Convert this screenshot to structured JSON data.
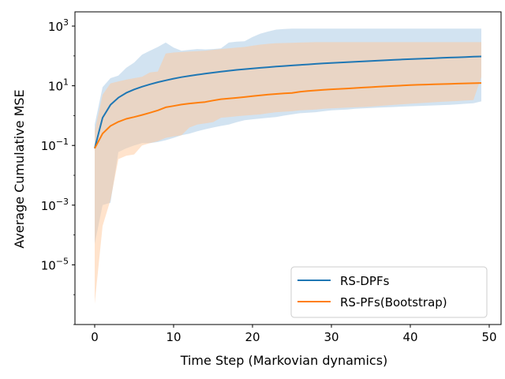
{
  "chart_data": {
    "type": "line",
    "title": "",
    "xlabel": "Time Step (Markovian dynamics)",
    "ylabel": "Average Cumulative MSE",
    "xlim": [
      -2.5,
      51.5
    ],
    "ylim": [
      1e-07,
      3000
    ],
    "yscale": "log",
    "grid": false,
    "legend_position": "lower-right",
    "xticks": [
      {
        "value": 0,
        "label": "0"
      },
      {
        "value": 10,
        "label": "10"
      },
      {
        "value": 20,
        "label": "20"
      },
      {
        "value": 30,
        "label": "30"
      },
      {
        "value": 40,
        "label": "40"
      },
      {
        "value": 50,
        "label": "50"
      }
    ],
    "yticks": [
      {
        "value": 1e-05,
        "base": "10",
        "exp": "−5"
      },
      {
        "value": 0.001,
        "base": "10",
        "exp": "−3"
      },
      {
        "value": 0.1,
        "base": "10",
        "exp": "−1"
      },
      {
        "value": 10,
        "base": "10",
        "exp": "1"
      },
      {
        "value": 1000,
        "base": "10",
        "exp": "3"
      }
    ],
    "x": [
      0,
      1,
      2,
      3,
      4,
      5,
      6,
      7,
      8,
      9,
      10,
      11,
      12,
      13,
      14,
      15,
      16,
      17,
      18,
      19,
      20,
      21,
      22,
      23,
      24,
      25,
      26,
      27,
      28,
      29,
      30,
      31,
      32,
      33,
      34,
      35,
      36,
      37,
      38,
      39,
      40,
      41,
      42,
      43,
      44,
      45,
      46,
      47,
      48,
      49
    ],
    "series": [
      {
        "name": "RS-DPFs",
        "color": "#1f77b4",
        "band_color": "#a6c8e4",
        "values": [
          0.08,
          0.85,
          2.3,
          4.0,
          5.8,
          7.5,
          9.3,
          11.2,
          13.2,
          15.2,
          17.3,
          19.4,
          21.5,
          23.5,
          25.5,
          27.6,
          29.8,
          31.8,
          34.0,
          36.0,
          38.0,
          40.0,
          42.0,
          44.0,
          46.0,
          48.0,
          50.0,
          52.0,
          54.0,
          56.0,
          58.0,
          60.0,
          62.0,
          64.0,
          66.0,
          68.0,
          70.0,
          72.0,
          74.0,
          76.0,
          78.0,
          80.0,
          82.0,
          84.0,
          86.0,
          88.0,
          90.0,
          92.0,
          94.0,
          96.0
        ],
        "upper": [
          0.5,
          9,
          18,
          22,
          40,
          60,
          110,
          150,
          200,
          280,
          190,
          150,
          160,
          170,
          165,
          170,
          180,
          280,
          300,
          310,
          430,
          560,
          660,
          760,
          800,
          820,
          820,
          820,
          820,
          820,
          820,
          820,
          820,
          820,
          820,
          820,
          820,
          820,
          820,
          820,
          820,
          820,
          820,
          820,
          820,
          820,
          820,
          820,
          820,
          820
        ],
        "lower": [
          5e-05,
          0.001,
          0.0012,
          0.06,
          0.08,
          0.1,
          0.12,
          0.12,
          0.13,
          0.15,
          0.18,
          0.22,
          0.25,
          0.3,
          0.35,
          0.4,
          0.45,
          0.5,
          0.6,
          0.7,
          0.75,
          0.8,
          0.85,
          0.9,
          1.0,
          1.1,
          1.2,
          1.25,
          1.3,
          1.4,
          1.5,
          1.55,
          1.6,
          1.7,
          1.75,
          1.8,
          1.85,
          1.9,
          1.95,
          2.0,
          2.05,
          2.1,
          2.15,
          2.2,
          2.25,
          2.3,
          2.4,
          2.5,
          2.6,
          3.0
        ]
      },
      {
        "name": "RS-PFs(Bootstrap)",
        "color": "#ff7f0e",
        "band_color": "#ffc89a",
        "values": [
          0.08,
          0.25,
          0.45,
          0.62,
          0.78,
          0.9,
          1.05,
          1.25,
          1.5,
          1.9,
          2.1,
          2.35,
          2.55,
          2.7,
          2.85,
          3.2,
          3.55,
          3.75,
          3.95,
          4.2,
          4.5,
          4.75,
          5.05,
          5.3,
          5.55,
          5.75,
          6.3,
          6.7,
          7.0,
          7.3,
          7.6,
          7.85,
          8.1,
          8.4,
          8.7,
          9.0,
          9.3,
          9.6,
          9.9,
          10.2,
          10.5,
          10.8,
          11.0,
          11.2,
          11.4,
          11.6,
          11.8,
          12.0,
          12.2,
          12.4
        ],
        "upper": [
          0.3,
          5,
          12,
          14,
          16,
          18,
          20,
          28,
          30,
          120,
          130,
          135,
          140,
          145,
          150,
          160,
          170,
          180,
          190,
          200,
          220,
          240,
          255,
          265,
          270,
          275,
          280,
          285,
          290,
          290,
          290,
          290,
          290,
          290,
          290,
          290,
          290,
          290,
          290,
          290,
          290,
          290,
          290,
          290,
          290,
          290,
          290,
          290,
          290,
          290
        ],
        "lower": [
          5e-07,
          0.0002,
          0.0015,
          0.035,
          0.045,
          0.05,
          0.1,
          0.12,
          0.14,
          0.18,
          0.2,
          0.22,
          0.4,
          0.5,
          0.55,
          0.6,
          0.85,
          0.9,
          0.95,
          1.0,
          1.05,
          1.1,
          1.2,
          1.3,
          1.35,
          1.4,
          1.5,
          1.55,
          1.6,
          1.7,
          1.75,
          1.8,
          1.85,
          1.9,
          1.95,
          2.0,
          2.1,
          2.2,
          2.3,
          2.4,
          2.5,
          2.6,
          2.7,
          2.8,
          2.9,
          3.0,
          3.1,
          3.2,
          3.3,
          20
        ]
      }
    ]
  }
}
